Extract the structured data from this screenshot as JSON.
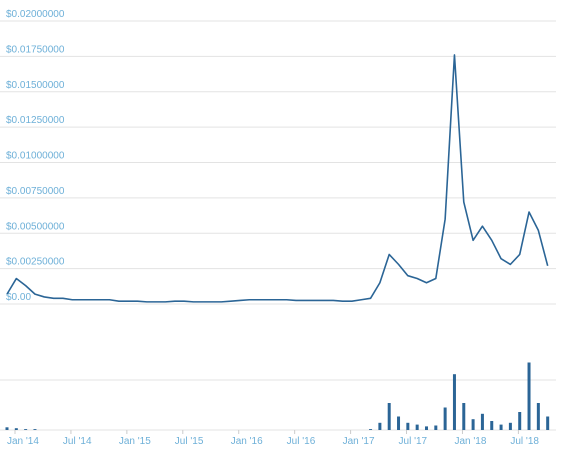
{
  "chart_data": {
    "type": "line",
    "x": [
      "2014-01",
      "2014-02",
      "2014-03",
      "2014-04",
      "2014-05",
      "2014-06",
      "2014-07",
      "2014-08",
      "2014-09",
      "2014-10",
      "2014-11",
      "2014-12",
      "2015-01",
      "2015-02",
      "2015-03",
      "2015-04",
      "2015-05",
      "2015-06",
      "2015-07",
      "2015-08",
      "2015-09",
      "2015-10",
      "2015-11",
      "2015-12",
      "2016-01",
      "2016-02",
      "2016-03",
      "2016-04",
      "2016-05",
      "2016-06",
      "2016-07",
      "2016-08",
      "2016-09",
      "2016-10",
      "2016-11",
      "2016-12",
      "2017-01",
      "2017-02",
      "2017-03",
      "2017-04",
      "2017-05",
      "2017-06",
      "2017-07",
      "2017-08",
      "2017-09",
      "2017-10",
      "2017-11",
      "2017-12",
      "2018-01",
      "2018-02",
      "2018-03",
      "2018-04",
      "2018-05",
      "2018-06",
      "2018-07",
      "2018-08",
      "2018-09",
      "2018-10",
      "2018-11"
    ],
    "xlim": [
      "2014-01",
      "2018-12"
    ],
    "xticks": [
      {
        "value": "2014-01",
        "label": "Jan '14"
      },
      {
        "value": "2014-07",
        "label": "Jul '14"
      },
      {
        "value": "2015-01",
        "label": "Jan '15"
      },
      {
        "value": "2015-07",
        "label": "Jul '15"
      },
      {
        "value": "2016-01",
        "label": "Jan '16"
      },
      {
        "value": "2016-07",
        "label": "Jul '16"
      },
      {
        "value": "2017-01",
        "label": "Jan '17"
      },
      {
        "value": "2017-07",
        "label": "Jul '17"
      },
      {
        "value": "2018-01",
        "label": "Jan '18"
      },
      {
        "value": "2018-07",
        "label": "Jul '18"
      }
    ],
    "series": [
      {
        "type": "line",
        "color": "#2b6596",
        "values": [
          0.0007,
          0.0018,
          0.0013,
          0.0007,
          0.0005,
          0.0004,
          0.0004,
          0.0003,
          0.0003,
          0.0003,
          0.0003,
          0.0003,
          0.0002,
          0.0002,
          0.0002,
          0.00015,
          0.00015,
          0.00015,
          0.0002,
          0.0002,
          0.00015,
          0.00015,
          0.00015,
          0.00015,
          0.0002,
          0.00025,
          0.0003,
          0.0003,
          0.0003,
          0.0003,
          0.0003,
          0.00025,
          0.00025,
          0.00025,
          0.00025,
          0.00025,
          0.0002,
          0.0002,
          0.0003,
          0.0004,
          0.0015,
          0.0035,
          0.0028,
          0.002,
          0.0018,
          0.0015,
          0.0018,
          0.006,
          0.0176,
          0.0072,
          0.0045,
          0.0055,
          0.0045,
          0.0032,
          0.0028,
          0.0035,
          0.0065,
          0.0052,
          0.0027
        ]
      },
      {
        "type": "bar",
        "axis": "y2",
        "color": "#2b6596",
        "values": [
          3,
          2,
          1,
          1,
          0,
          0,
          0,
          0,
          0,
          0,
          0,
          0,
          0,
          0,
          0,
          0,
          0,
          0,
          0,
          0,
          0,
          0,
          0,
          0,
          0,
          0,
          0,
          0,
          0,
          0,
          0,
          0,
          0,
          0,
          0,
          0,
          0,
          0,
          0,
          1,
          8,
          30,
          15,
          8,
          6,
          4,
          5,
          25,
          62,
          30,
          12,
          18,
          10,
          6,
          8,
          20,
          75,
          30,
          15
        ]
      }
    ],
    "ylim": [
      0,
      0.02
    ],
    "yticks": [
      {
        "value": 0,
        "label": "$0.00"
      },
      {
        "value": 0.0025,
        "label": "$0.00250000"
      },
      {
        "value": 0.005,
        "label": "$0.00500000"
      },
      {
        "value": 0.0075,
        "label": "$0.00750000"
      },
      {
        "value": 0.01,
        "label": "$0.01000000"
      },
      {
        "value": 0.0125,
        "label": "$0.01250000"
      },
      {
        "value": 0.015,
        "label": "$0.01500000"
      },
      {
        "value": 0.0175,
        "label": "$0.01750000"
      },
      {
        "value": 0.02,
        "label": "$0.02000000"
      }
    ],
    "y2lim": [
      0,
      100
    ],
    "grid": true
  }
}
